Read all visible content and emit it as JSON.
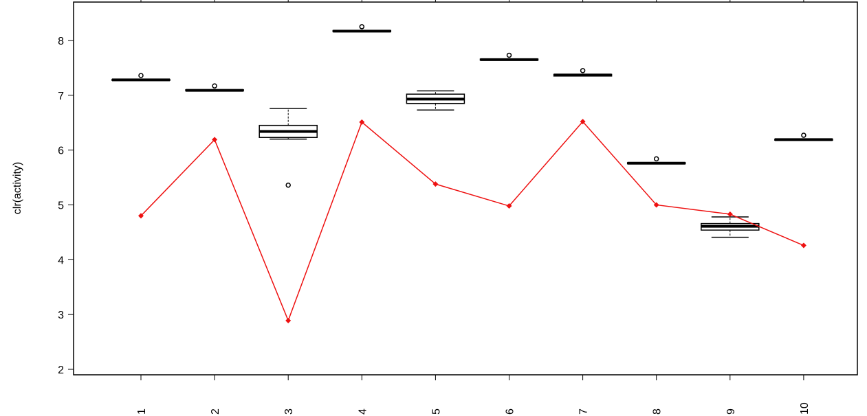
{
  "chart_data": {
    "type": "box",
    "ylabel": "clr(activity)",
    "xlabel": "",
    "title": "",
    "categories": [
      "1",
      "2",
      "3",
      "4",
      "5",
      "6",
      "7",
      "8",
      "9",
      "10"
    ],
    "x_tick_labels": [
      "1",
      "2",
      "3",
      "4",
      "5",
      "6",
      "7",
      "8",
      "9",
      "10"
    ],
    "y_ticks": [
      2,
      3,
      4,
      5,
      6,
      7,
      8
    ],
    "ylim": [
      1.9,
      8.7
    ],
    "grid": false,
    "box_series": [
      {
        "category": "1",
        "whisker_low": 7.27,
        "q1": 7.27,
        "median": 7.28,
        "q3": 7.29,
        "whisker_high": 7.29,
        "outliers": [
          7.36
        ]
      },
      {
        "category": "2",
        "whisker_low": 7.08,
        "q1": 7.08,
        "median": 7.09,
        "q3": 7.1,
        "whisker_high": 7.1,
        "outliers": [
          7.17
        ]
      },
      {
        "category": "3",
        "whisker_low": 6.2,
        "q1": 6.23,
        "median": 6.34,
        "q3": 6.45,
        "whisker_high": 6.76,
        "outliers": [
          5.36
        ]
      },
      {
        "category": "4",
        "whisker_low": 8.16,
        "q1": 8.16,
        "median": 8.17,
        "q3": 8.18,
        "whisker_high": 8.18,
        "outliers": [
          8.25
        ]
      },
      {
        "category": "5",
        "whisker_low": 6.73,
        "q1": 6.85,
        "median": 6.93,
        "q3": 7.02,
        "whisker_high": 7.08,
        "outliers": []
      },
      {
        "category": "6",
        "whisker_low": 7.64,
        "q1": 7.64,
        "median": 7.65,
        "q3": 7.66,
        "whisker_high": 7.66,
        "outliers": [
          7.73
        ]
      },
      {
        "category": "7",
        "whisker_low": 7.35,
        "q1": 7.35,
        "median": 7.37,
        "q3": 7.38,
        "whisker_high": 7.38,
        "outliers": [
          7.45
        ]
      },
      {
        "category": "8",
        "whisker_low": 5.75,
        "q1": 5.75,
        "median": 5.76,
        "q3": 5.77,
        "whisker_high": 5.77,
        "outliers": [
          5.84
        ]
      },
      {
        "category": "9",
        "whisker_low": 4.41,
        "q1": 4.54,
        "median": 4.61,
        "q3": 4.66,
        "whisker_high": 4.78,
        "outliers": []
      },
      {
        "category": "10",
        "whisker_low": 6.18,
        "q1": 6.18,
        "median": 6.19,
        "q3": 6.2,
        "whisker_high": 6.2,
        "outliers": [
          6.27
        ]
      }
    ],
    "series": [
      {
        "color": "#ee1111",
        "values": [
          4.8,
          6.19,
          2.89,
          6.51,
          5.38,
          4.98,
          6.52,
          5.0,
          4.83,
          4.26
        ]
      }
    ],
    "colors": {
      "box": "#000000",
      "line": "#ee1111",
      "background": "#ffffff"
    }
  }
}
